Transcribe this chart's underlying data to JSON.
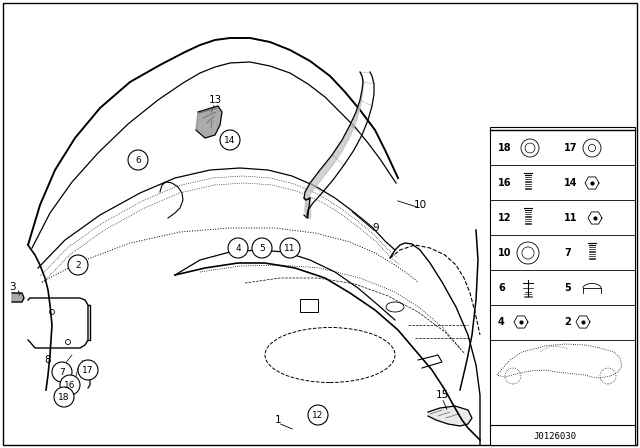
{
  "bg_color": "#ffffff",
  "line_color": "#000000",
  "diagram_id": "J0126030",
  "gray_fill": "#aaaaaa",
  "dark_gray": "#555555"
}
